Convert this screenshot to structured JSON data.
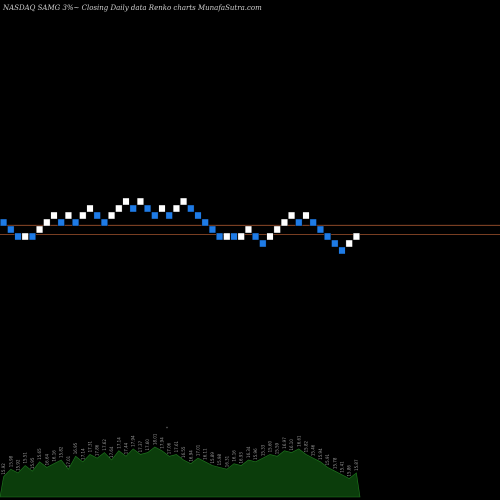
{
  "chart_data": {
    "type": "renko",
    "title": "NASDAQ SAMG 3%~   Closing Daily data  Renko  charts MunafaSutra.com",
    "colors": {
      "background": "#000000",
      "up_brick": "#ffffff",
      "down_brick": "#1e7be6",
      "reference_line": "#a0522d",
      "volume_area": "#0b3d0b",
      "volume_stroke": "#1f7a1f",
      "label_text": "#9a9a9a"
    },
    "reference_lines": [
      15.75,
      15.35
    ],
    "bricks": [
      {
        "dir": "down",
        "low": 15.72,
        "high": 16.02
      },
      {
        "dir": "down",
        "low": 15.42,
        "high": 15.72
      },
      {
        "dir": "down",
        "low": 15.12,
        "high": 15.42
      },
      {
        "dir": "up",
        "low": 15.12,
        "high": 15.42
      },
      {
        "dir": "down",
        "low": 15.12,
        "high": 15.42
      },
      {
        "dir": "up",
        "low": 15.42,
        "high": 15.72
      },
      {
        "dir": "up",
        "low": 15.72,
        "high": 16.02
      },
      {
        "dir": "up",
        "low": 16.02,
        "high": 16.32
      },
      {
        "dir": "down",
        "low": 15.72,
        "high": 16.02
      },
      {
        "dir": "up",
        "low": 16.02,
        "high": 16.32
      },
      {
        "dir": "down",
        "low": 15.72,
        "high": 16.02
      },
      {
        "dir": "up",
        "low": 16.02,
        "high": 16.32
      },
      {
        "dir": "up",
        "low": 16.32,
        "high": 16.62
      },
      {
        "dir": "down",
        "low": 16.02,
        "high": 16.32
      },
      {
        "dir": "down",
        "low": 15.72,
        "high": 16.02
      },
      {
        "dir": "up",
        "low": 16.02,
        "high": 16.32
      },
      {
        "dir": "up",
        "low": 16.32,
        "high": 16.62
      },
      {
        "dir": "up",
        "low": 16.62,
        "high": 16.92
      },
      {
        "dir": "down",
        "low": 16.32,
        "high": 16.62
      },
      {
        "dir": "up",
        "low": 16.62,
        "high": 16.92
      },
      {
        "dir": "down",
        "low": 16.32,
        "high": 16.62
      },
      {
        "dir": "down",
        "low": 16.02,
        "high": 16.32
      },
      {
        "dir": "up",
        "low": 16.32,
        "high": 16.62
      },
      {
        "dir": "down",
        "low": 16.02,
        "high": 16.32
      },
      {
        "dir": "up",
        "low": 16.32,
        "high": 16.62
      },
      {
        "dir": "up",
        "low": 16.62,
        "high": 16.92
      },
      {
        "dir": "down",
        "low": 16.32,
        "high": 16.62
      },
      {
        "dir": "down",
        "low": 16.02,
        "high": 16.32
      },
      {
        "dir": "down",
        "low": 15.72,
        "high": 16.02
      },
      {
        "dir": "down",
        "low": 15.42,
        "high": 15.72
      },
      {
        "dir": "down",
        "low": 15.12,
        "high": 15.42
      },
      {
        "dir": "up",
        "low": 15.12,
        "high": 15.42
      },
      {
        "dir": "down",
        "low": 15.12,
        "high": 15.42
      },
      {
        "dir": "up",
        "low": 15.12,
        "high": 15.42
      },
      {
        "dir": "up",
        "low": 15.42,
        "high": 15.72
      },
      {
        "dir": "down",
        "low": 15.12,
        "high": 15.42
      },
      {
        "dir": "down",
        "low": 14.82,
        "high": 15.12
      },
      {
        "dir": "up",
        "low": 15.12,
        "high": 15.42
      },
      {
        "dir": "up",
        "low": 15.42,
        "high": 15.72
      },
      {
        "dir": "up",
        "low": 15.72,
        "high": 16.02
      },
      {
        "dir": "up",
        "low": 16.02,
        "high": 16.32
      },
      {
        "dir": "down",
        "low": 15.72,
        "high": 16.02
      },
      {
        "dir": "up",
        "low": 16.02,
        "high": 16.32
      },
      {
        "dir": "down",
        "low": 15.72,
        "high": 16.02
      },
      {
        "dir": "down",
        "low": 15.42,
        "high": 15.72
      },
      {
        "dir": "down",
        "low": 15.12,
        "high": 15.42
      },
      {
        "dir": "down",
        "low": 14.82,
        "high": 15.12
      },
      {
        "dir": "down",
        "low": 14.52,
        "high": 14.82
      },
      {
        "dir": "up",
        "low": 14.82,
        "high": 15.12
      },
      {
        "dir": "up",
        "low": 15.12,
        "high": 15.42
      }
    ],
    "price_labels": [
      "15.92",
      "15.98",
      "15.92",
      "15.51",
      "15.95",
      "15.65",
      "16.64",
      "16.16",
      "15.82",
      "17.01",
      "16.95",
      "17.14",
      "17.31",
      "17.86",
      "17.62",
      "17.64",
      "17.14",
      "17.44",
      "17.94",
      "17.37",
      "17.60",
      "18.01",
      "17.94",
      "17.06",
      "17.61",
      "16.55",
      "16.94",
      "17.01",
      "16.11",
      "15.89",
      "15.98",
      "16.31",
      "16.16",
      "16.93",
      "16.34",
      "15.96",
      "15.33",
      "15.60",
      "15.59",
      "16.97",
      "16.10",
      "16.61",
      "15.82",
      "15.46",
      "15.94",
      "15.91",
      "15.78",
      "15.41",
      "15.86",
      "15.87"
    ],
    "volume": [
      22,
      30,
      26,
      34,
      28,
      38,
      32,
      36,
      40,
      30,
      44,
      38,
      46,
      42,
      48,
      40,
      50,
      44,
      52,
      46,
      48,
      54,
      50,
      44,
      46,
      40,
      36,
      42,
      38,
      34,
      32,
      30,
      36,
      34,
      40,
      38,
      42,
      46,
      44,
      50,
      48,
      52,
      46,
      42,
      38,
      32,
      28,
      24,
      20,
      26
    ],
    "volume_marker": "*"
  }
}
